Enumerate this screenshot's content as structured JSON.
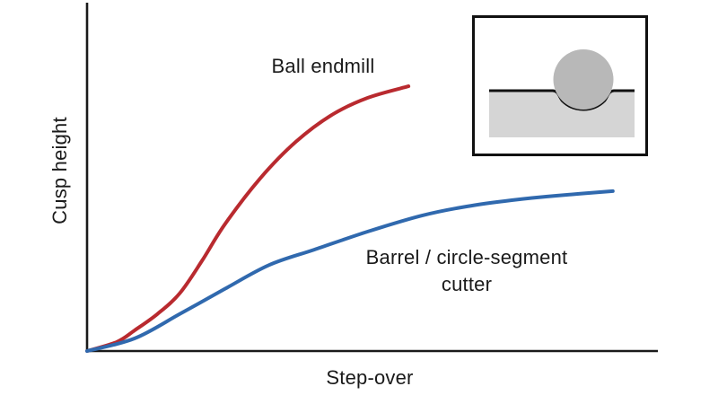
{
  "page": {
    "background": "#ffffff",
    "text_color": "#1a1a1a",
    "axis_color": "#1a1a1a"
  },
  "chart_data": {
    "type": "line",
    "title": "",
    "xlabel": "Step-over",
    "ylabel": "Cusp height",
    "x_range": [
      0,
      1
    ],
    "y_range": [
      0,
      1
    ],
    "grid": false,
    "tick_labels": "none",
    "legend_position": "inline-curve-labels",
    "series": [
      {
        "name": "Ball endmill",
        "color": "#b92a2f",
        "x": [
          0,
          0.052,
          0.083,
          0.123,
          0.162,
          0.201,
          0.241,
          0.303,
          0.366,
          0.429,
          0.492,
          0.563
        ],
        "y": [
          0,
          0.026,
          0.059,
          0.106,
          0.165,
          0.258,
          0.363,
          0.495,
          0.601,
          0.678,
          0.727,
          0.76
        ]
      },
      {
        "name": "Barrel / circle-segment cutter",
        "color": "#3069ae",
        "x": [
          0,
          0.083,
          0.162,
          0.241,
          0.319,
          0.398,
          0.492,
          0.587,
          0.665,
          0.744,
          0.822,
          0.921
        ],
        "y": [
          0,
          0.036,
          0.106,
          0.178,
          0.247,
          0.291,
          0.343,
          0.389,
          0.415,
          0.433,
          0.446,
          0.459
        ]
      }
    ]
  },
  "inset": {
    "description": "Cross-section of ball cutter resting in machined scallop on workpiece",
    "ball_fill": "#b8b8b8",
    "block_fill": "#d5d5d5",
    "outline_color": "#111111",
    "background": "#ffffff"
  }
}
